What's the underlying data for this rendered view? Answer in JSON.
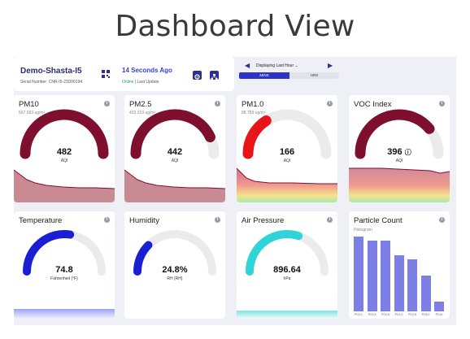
{
  "title": "Dashboard View",
  "device": {
    "name": "Demo-Shasta-I5",
    "serial": "Serial Number: CNR-I5-23D00194",
    "last_update_ago": "14 Seconds Ago",
    "status_online": "Online",
    "status_rest": " | Last Update"
  },
  "time_selector": {
    "label": "Displaying Last Hour",
    "segments": [
      "MINS",
      "HRS"
    ],
    "active": "MINS"
  },
  "metrics": [
    {
      "title": "PM10",
      "sub": "567.693 ug/m³",
      "value": "482",
      "unit": "AQI",
      "fraction": 1.0,
      "color": "#7e0f2e"
    },
    {
      "title": "PM2.5",
      "sub": "433.319 ug/m³",
      "value": "442",
      "unit": "AQI",
      "fraction": 0.86,
      "color": "#7e0f2e"
    },
    {
      "title": "PM1.0",
      "sub": "88.783 ug/m³",
      "value": "166",
      "unit": "AQI",
      "fraction": 0.32,
      "color": "#e8141a"
    },
    {
      "title": "VOC Index",
      "sub": "",
      "value": "396",
      "unit": "AQI",
      "fraction": 0.78,
      "color": "#7e0f2e"
    },
    {
      "title": "Temperature",
      "sub": "",
      "value": "74.8",
      "unit": "Fahrenheit (°F)",
      "fraction": 0.55,
      "color": "#1a1fd4"
    },
    {
      "title": "Humidity",
      "sub": "",
      "value": "24.8%",
      "unit": "RH (RH)",
      "fraction": 0.25,
      "color": "#1a1fd4"
    },
    {
      "title": "Air Pressure",
      "sub": "",
      "value": "896.64",
      "unit": "hPa",
      "fraction": 0.6,
      "color": "#2fd4d8"
    }
  ],
  "particle_count": {
    "title": "Particle Count",
    "subtitle": "Histogram",
    "bins": [
      "PC0.1",
      "PC0.3",
      "PC0.5",
      "PC1.0",
      "PC2.5",
      "PC5.0",
      "PC10"
    ],
    "relative_heights": [
      1.0,
      0.95,
      0.95,
      0.75,
      0.7,
      0.48,
      0.13
    ]
  },
  "colors": {
    "accent": "#2e33c8",
    "aqi_bad": "#7e0f2e",
    "gauge_track": "#ebebee"
  },
  "icons": [
    "qr-code-icon",
    "settings-icon",
    "sitemap-icon",
    "chevron-left-icon",
    "chevron-right-icon",
    "chevron-down-icon",
    "info-icon"
  ]
}
